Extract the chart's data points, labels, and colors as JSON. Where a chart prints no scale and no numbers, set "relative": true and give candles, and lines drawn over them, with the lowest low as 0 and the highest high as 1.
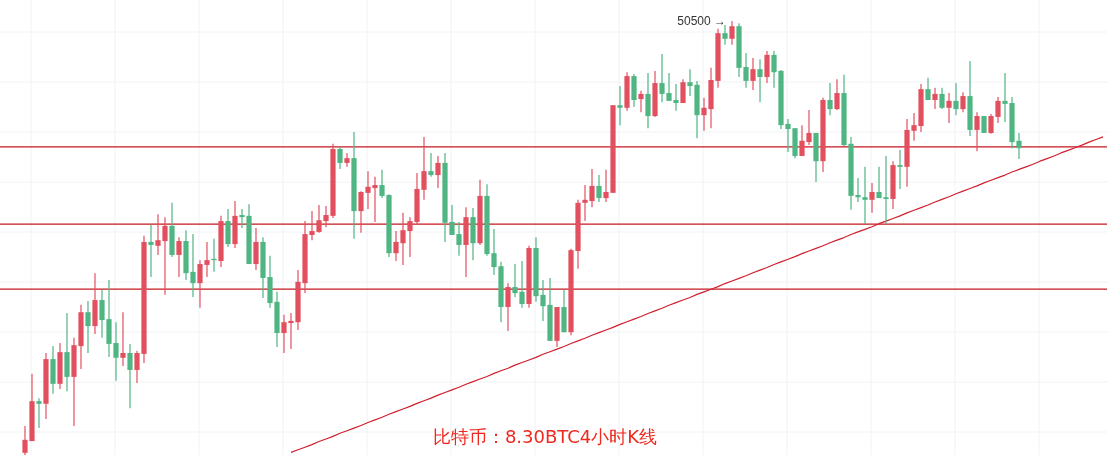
{
  "chart_data": {
    "type": "candlestick",
    "relative": true,
    "title": "比特币：8.30BTC4小时K线",
    "annotations": [
      "50500 →"
    ],
    "categories": [
      null,
      null,
      null,
      null,
      null,
      null,
      null,
      null,
      null,
      null,
      null,
      null,
      null,
      null,
      null,
      null,
      null,
      null,
      null,
      null,
      null,
      null,
      null,
      null,
      null,
      null,
      null,
      null,
      null,
      null,
      null,
      null,
      null,
      null,
      null,
      null,
      null,
      null,
      null,
      null,
      null,
      null,
      null,
      null,
      null,
      null,
      null,
      null,
      null,
      null,
      null,
      null,
      null,
      null,
      null,
      null,
      null,
      null,
      null,
      null,
      null,
      null,
      null,
      null,
      null,
      null,
      null,
      null,
      null,
      null,
      null,
      null,
      null,
      null,
      null,
      null,
      null,
      null,
      null,
      null,
      null,
      null,
      null,
      null,
      null,
      null,
      null,
      null,
      null,
      null,
      null,
      null,
      null,
      null,
      null,
      null,
      null,
      null,
      null,
      null,
      null,
      null,
      null,
      null,
      null,
      null,
      null,
      null,
      null,
      null,
      null,
      null,
      null,
      null,
      null,
      null,
      null,
      null,
      null,
      null,
      null,
      null,
      null,
      null,
      null,
      null,
      null,
      null,
      null,
      null,
      null,
      null,
      null,
      null,
      null,
      null,
      null,
      null,
      null,
      null,
      null,
      null,
      null,
      null,
      null,
      null,
      null,
      null,
      null,
      null,
      null,
      null,
      null,
      null,
      null
    ],
    "colors": [
      "#e2505f",
      "#e2505f",
      "#4fb582",
      "#e2505f",
      "#4fb582",
      "#e2505f",
      "#4fb582",
      "#e2505f",
      "#e2505f",
      "#4fb582",
      "#e2505f",
      "#4fb582",
      "#4fb582",
      "#4fb582",
      "#e2505f",
      "#4fb582",
      "#e2505f",
      "#e2505f",
      "#4fb582",
      "#e2505f",
      "#e2505f",
      "#4fb582",
      "#e2505f",
      "#4fb582",
      "#4fb582",
      "#e2505f",
      "#e2505f",
      "#4fb582",
      "#e2505f",
      "#4fb582",
      "#e2505f",
      "#4fb582",
      "#4fb582",
      "#e2505f",
      "#4fb582",
      "#4fb582",
      "#4fb582",
      "#e2505f",
      "#e2505f",
      "#e2505f",
      "#e2505f",
      "#e2505f",
      "#e2505f",
      "#e2505f",
      "#e2505f",
      "#4fb582",
      "#e2505f",
      "#4fb582",
      "#e2505f",
      "#e2505f",
      "#e2505f",
      "#4fb582",
      "#4fb582",
      "#e2505f",
      "#e2505f",
      "#e2505f",
      "#e2505f",
      "#e2505f",
      "#4fb582",
      "#e2505f",
      "#4fb582",
      "#4fb582",
      "#4fb582",
      "#e2505f",
      "#4fb582",
      "#e2505f",
      "#4fb582",
      "#4fb582",
      "#4fb582",
      "#e2505f",
      "#4fb582",
      "#4fb582",
      "#e2505f",
      "#4fb582",
      "#4fb582",
      "#4fb582",
      "#e2505f",
      "#4fb582",
      "#e2505f",
      "#e2505f",
      "#e2505f",
      "#e2505f",
      "#4fb582",
      "#e2505f",
      "#e2505f",
      "#4fb582",
      "#e2505f",
      "#4fb582",
      "#e2505f",
      "#4fb582",
      "#e2505f",
      "#4fb582",
      "#4fb582",
      "#4fb582",
      "#e2505f",
      "#4fb582",
      "#4fb582",
      "#e2505f",
      "#e2505f",
      "#e2505f",
      "#4fb582",
      "#e2505f",
      "#4fb582",
      "#4fb582",
      "#e2505f",
      "#4fb582",
      "#e2505f",
      "#4fb582",
      "#4fb582",
      "#4fb582",
      "#4fb582",
      "#e2505f",
      "#e2505f",
      "#4fb582",
      "#e2505f",
      "#4fb582",
      "#e2505f",
      "#4fb582",
      "#4fb582",
      "#4fb582",
      "#4fb582",
      "#e2505f",
      "#4fb582",
      "#4fb582",
      "#e2505f",
      "#4fb582",
      "#e2505f",
      "#e2505f",
      "#e2505f",
      "#4fb582",
      "#e2505f",
      "#4fb582",
      "#e2505f",
      "#4fb582",
      "#e2505f",
      "#4fb582",
      "#e2505f",
      "#4fb582",
      "#e2505f",
      "#e2505f",
      "#4fb582",
      "#4fb582",
      "#4fb582",
      null,
      null,
      null,
      null,
      null,
      null,
      null,
      null,
      null,
      null,
      null,
      null
    ],
    "ohlc": [
      [
        0.005,
        0.067,
        0,
        0.035
      ],
      [
        0.032,
        0.187,
        0.032,
        0.124
      ],
      [
        0.124,
        0.131,
        0.062,
        0.118
      ],
      [
        0.118,
        0.235,
        0.083,
        0.221
      ],
      [
        0.221,
        0.251,
        0.141,
        0.164
      ],
      [
        0.164,
        0.258,
        0.152,
        0.237
      ],
      [
        0.237,
        0.327,
        0.147,
        0.18
      ],
      [
        0.18,
        0.27,
        0.067,
        0.253
      ],
      [
        0.251,
        0.346,
        0.198,
        0.329
      ],
      [
        0.329,
        0.355,
        0.235,
        0.297
      ],
      [
        0.297,
        0.419,
        0.279,
        0.357
      ],
      [
        0.357,
        0.38,
        0.27,
        0.311
      ],
      [
        0.313,
        0.403,
        0.226,
        0.256
      ],
      [
        0.258,
        0.306,
        0.171,
        0.224
      ],
      [
        0.224,
        0.329,
        0.205,
        0.235
      ],
      [
        0.235,
        0.256,
        0.108,
        0.196
      ],
      [
        0.196,
        0.24,
        0.166,
        0.235
      ],
      [
        0.233,
        0.505,
        0.212,
        0.491
      ],
      [
        0.491,
        0.53,
        0.41,
        0.484
      ],
      [
        0.482,
        0.555,
        0.461,
        0.495
      ],
      [
        0.493,
        0.548,
        0.369,
        0.528
      ],
      [
        0.528,
        0.581,
        0.456,
        0.461
      ],
      [
        0.461,
        0.502,
        0.41,
        0.493
      ],
      [
        0.493,
        0.518,
        0.403,
        0.419
      ],
      [
        0.422,
        0.509,
        0.364,
        0.396
      ],
      [
        0.396,
        0.449,
        0.339,
        0.44
      ],
      [
        0.438,
        0.491,
        0.41,
        0.449
      ],
      [
        0.452,
        0.498,
        0.422,
        0.449
      ],
      [
        0.447,
        0.551,
        0.433,
        0.539
      ],
      [
        0.539,
        0.567,
        0.479,
        0.486
      ],
      [
        0.486,
        0.585,
        0.477,
        0.551
      ],
      [
        0.553,
        0.567,
        0.523,
        0.548
      ],
      [
        0.551,
        0.578,
        0.44,
        0.44
      ],
      [
        0.44,
        0.523,
        0.426,
        0.491
      ],
      [
        0.491,
        0.502,
        0.362,
        0.408
      ],
      [
        0.41,
        0.459,
        0.339,
        0.35
      ],
      [
        0.353,
        0.376,
        0.249,
        0.281
      ],
      [
        0.281,
        0.323,
        0.235,
        0.306
      ],
      [
        0.304,
        0.327,
        0.244,
        0.309
      ],
      [
        0.306,
        0.426,
        0.288,
        0.399
      ],
      [
        0.396,
        0.539,
        0.373,
        0.509
      ],
      [
        0.507,
        0.562,
        0.495,
        0.516
      ],
      [
        0.514,
        0.576,
        0.512,
        0.541
      ],
      [
        0.539,
        0.574,
        0.525,
        0.553
      ],
      [
        0.551,
        0.717,
        0.546,
        0.705
      ],
      [
        0.705,
        0.71,
        0.659,
        0.673
      ],
      [
        0.673,
        0.696,
        0.664,
        0.684
      ],
      [
        0.684,
        0.744,
        0.498,
        0.562
      ],
      [
        0.562,
        0.608,
        0.512,
        0.606
      ],
      [
        0.604,
        0.654,
        0.567,
        0.618
      ],
      [
        0.615,
        0.641,
        0.537,
        0.622
      ],
      [
        0.622,
        0.657,
        0.592,
        0.597
      ],
      [
        0.599,
        0.601,
        0.456,
        0.465
      ],
      [
        0.465,
        0.516,
        0.447,
        0.491
      ],
      [
        0.488,
        0.558,
        0.438,
        0.518
      ],
      [
        0.516,
        0.548,
        0.456,
        0.539
      ],
      [
        0.537,
        0.65,
        0.53,
        0.613
      ],
      [
        0.611,
        0.733,
        0.588,
        0.654
      ],
      [
        0.654,
        0.696,
        0.641,
        0.645
      ],
      [
        0.645,
        0.689,
        0.615,
        0.673
      ],
      [
        0.673,
        0.696,
        0.491,
        0.535
      ],
      [
        0.537,
        0.576,
        0.507,
        0.507
      ],
      [
        0.509,
        0.537,
        0.459,
        0.484
      ],
      [
        0.484,
        0.571,
        0.41,
        0.548
      ],
      [
        0.548,
        0.569,
        0.449,
        0.488
      ],
      [
        0.488,
        0.634,
        0.484,
        0.597
      ],
      [
        0.597,
        0.624,
        0.459,
        0.463
      ],
      [
        0.465,
        0.521,
        0.415,
        0.433
      ],
      [
        0.435,
        0.445,
        0.306,
        0.341
      ],
      [
        0.341,
        0.396,
        0.286,
        0.387
      ],
      [
        0.387,
        0.44,
        0.364,
        0.373
      ],
      [
        0.376,
        0.447,
        0.339,
        0.348
      ],
      [
        0.348,
        0.482,
        0.339,
        0.477
      ],
      [
        0.477,
        0.502,
        0.353,
        0.366
      ],
      [
        0.369,
        0.403,
        0.309,
        0.343
      ],
      [
        0.346,
        0.408,
        0.263,
        0.263
      ],
      [
        0.263,
        0.341,
        0.249,
        0.341
      ],
      [
        0.341,
        0.38,
        0.283,
        0.283
      ],
      [
        0.283,
        0.475,
        0.276,
        0.472
      ],
      [
        0.47,
        0.588,
        0.429,
        0.581
      ],
      [
        0.581,
        0.622,
        0.539,
        0.588
      ],
      [
        0.585,
        0.659,
        0.571,
        0.62
      ],
      [
        0.62,
        0.645,
        0.583,
        0.592
      ],
      [
        0.592,
        0.657,
        0.583,
        0.606
      ],
      [
        0.604,
        0.806,
        0.604,
        0.806
      ],
      [
        0.806,
        0.85,
        0.76,
        0.8
      ],
      [
        0.8,
        0.882,
        0.793,
        0.873
      ],
      [
        0.873,
        0.878,
        0.802,
        0.818
      ],
      [
        0.82,
        0.839,
        0.79,
        0.832
      ],
      [
        0.832,
        0.88,
        0.753,
        0.781
      ],
      [
        0.781,
        0.885,
        0.779,
        0.857
      ],
      [
        0.857,
        0.924,
        0.813,
        0.832
      ],
      [
        0.834,
        0.88,
        0.816,
        0.816
      ],
      [
        0.818,
        0.855,
        0.793,
        0.811
      ],
      [
        0.811,
        0.866,
        0.811,
        0.859
      ],
      [
        0.859,
        0.889,
        0.827,
        0.85
      ],
      [
        0.853,
        0.862,
        0.73,
        0.783
      ],
      [
        0.783,
        0.823,
        0.747,
        0.8
      ],
      [
        0.797,
        0.892,
        0.753,
        0.864
      ],
      [
        0.862,
        0.982,
        0.846,
        0.972
      ],
      [
        0.972,
        0.991,
        0.945,
        0.959
      ],
      [
        0.959,
        1,
        0.945,
        0.988
      ],
      [
        0.988,
        0.995,
        0.871,
        0.892
      ],
      [
        0.894,
        0.926,
        0.846,
        0.862
      ],
      [
        0.862,
        0.915,
        0.841,
        0.889
      ],
      [
        0.889,
        0.912,
        0.813,
        0.871
      ],
      [
        0.871,
        0.931,
        0.857,
        0.922
      ],
      [
        0.922,
        0.931,
        0.846,
        0.882
      ],
      [
        0.885,
        0.887,
        0.751,
        0.76
      ],
      [
        0.763,
        0.774,
        0.698,
        0.751
      ],
      [
        0.753,
        0.753,
        0.684,
        0.689
      ],
      [
        0.689,
        0.76,
        0.689,
        0.724
      ],
      [
        0.721,
        0.795,
        0.714,
        0.742
      ],
      [
        0.742,
        0.742,
        0.629,
        0.677
      ],
      [
        0.677,
        0.823,
        0.652,
        0.818
      ],
      [
        0.818,
        0.857,
        0.783,
        0.797
      ],
      [
        0.797,
        0.866,
        0.795,
        0.834
      ],
      [
        0.834,
        0.876,
        0.712,
        0.714
      ],
      [
        0.717,
        0.733,
        0.565,
        0.597
      ],
      [
        0.599,
        0.638,
        0.583,
        0.594
      ],
      [
        0.594,
        0.664,
        0.532,
        0.588
      ],
      [
        0.588,
        0.627,
        0.558,
        0.606
      ],
      [
        0.606,
        0.664,
        0.592,
        0.592
      ],
      [
        0.594,
        0.689,
        0.532,
        0.59
      ],
      [
        0.59,
        0.677,
        0.567,
        0.668
      ],
      [
        0.668,
        0.703,
        0.613,
        0.664
      ],
      [
        0.664,
        0.774,
        0.618,
        0.749
      ],
      [
        0.747,
        0.788,
        0.724,
        0.76
      ],
      [
        0.758,
        0.855,
        0.744,
        0.843
      ],
      [
        0.843,
        0.869,
        0.818,
        0.818
      ],
      [
        0.818,
        0.846,
        0.797,
        0.832
      ],
      [
        0.832,
        0.846,
        0.797,
        0.8
      ],
      [
        0.8,
        0.834,
        0.765,
        0.816
      ],
      [
        0.816,
        0.857,
        0.783,
        0.797
      ],
      [
        0.797,
        0.836,
        0.79,
        0.827
      ],
      [
        0.827,
        0.908,
        0.735,
        0.749
      ],
      [
        0.749,
        0.79,
        0.7,
        0.781
      ],
      [
        0.781,
        0.781,
        0.742,
        0.742
      ],
      [
        0.742,
        0.786,
        0.74,
        0.781
      ],
      [
        0.779,
        0.825,
        0.765,
        0.816
      ],
      [
        0.816,
        0.88,
        0.767,
        0.809
      ],
      [
        0.811,
        0.825,
        0.707,
        0.721
      ],
      [
        0.724,
        0.742,
        0.682,
        0.707
      ],
      null,
      null,
      null,
      null,
      null,
      null,
      null,
      null,
      null,
      null,
      null,
      null
    ],
    "series": [
      {
        "type": "line",
        "color": "#d0202e",
        "values": [
          null,
          null,
          null,
          null,
          null,
          null,
          null,
          null,
          null,
          null,
          null,
          null,
          null,
          null,
          null,
          null,
          null,
          null,
          null,
          null,
          null,
          null,
          null,
          null,
          null,
          null,
          null,
          null,
          null,
          null,
          null,
          null,
          null,
          null,
          null,
          null,
          null,
          null,
          0.006,
          0.012,
          0.018,
          0.024,
          0.031,
          0.037,
          0.043,
          0.05,
          0.056,
          0.062,
          0.068,
          0.075,
          0.081,
          0.087,
          0.094,
          0.1,
          0.106,
          0.112,
          0.119,
          0.125,
          0.131,
          0.138,
          0.144,
          0.15,
          0.156,
          0.163,
          0.169,
          0.175,
          0.181,
          0.188,
          0.194,
          0.2,
          0.207,
          0.213,
          0.219,
          0.225,
          0.232,
          0.238,
          0.244,
          0.25,
          0.257,
          0.263,
          0.269,
          0.276,
          0.282,
          0.288,
          0.294,
          0.301,
          0.307,
          0.313,
          0.319,
          0.326,
          0.332,
          0.338,
          0.345,
          0.351,
          0.357,
          0.363,
          0.37,
          0.376,
          0.382,
          0.388,
          0.395,
          0.401,
          0.407,
          0.413,
          0.42,
          0.426,
          0.432,
          0.439,
          0.445,
          0.451,
          0.457,
          0.464,
          0.47,
          0.476,
          0.482,
          0.489,
          0.495,
          0.501,
          0.508,
          0.514,
          0.52,
          0.526,
          0.533,
          0.539,
          0.545,
          0.551,
          0.558,
          0.564,
          0.57,
          0.576,
          0.583,
          0.589,
          0.595,
          0.602,
          0.608,
          0.614,
          0.62,
          0.627,
          0.633,
          0.639,
          0.645,
          0.652,
          0.658,
          0.664,
          0.67,
          0.677,
          0.683,
          0.689,
          0.696,
          0.702,
          0.708,
          0.714,
          0.721,
          0.727,
          0.733
        ]
      }
    ],
    "ref_lines": [
      {
        "axis": "y",
        "value": 0.71,
        "color": "#c8161f"
      },
      {
        "axis": "y",
        "value": 0.532,
        "color": "#c8161f"
      },
      {
        "axis": "y",
        "value": 0.382,
        "color": "#c8161f"
      }
    ],
    "grid": true
  }
}
